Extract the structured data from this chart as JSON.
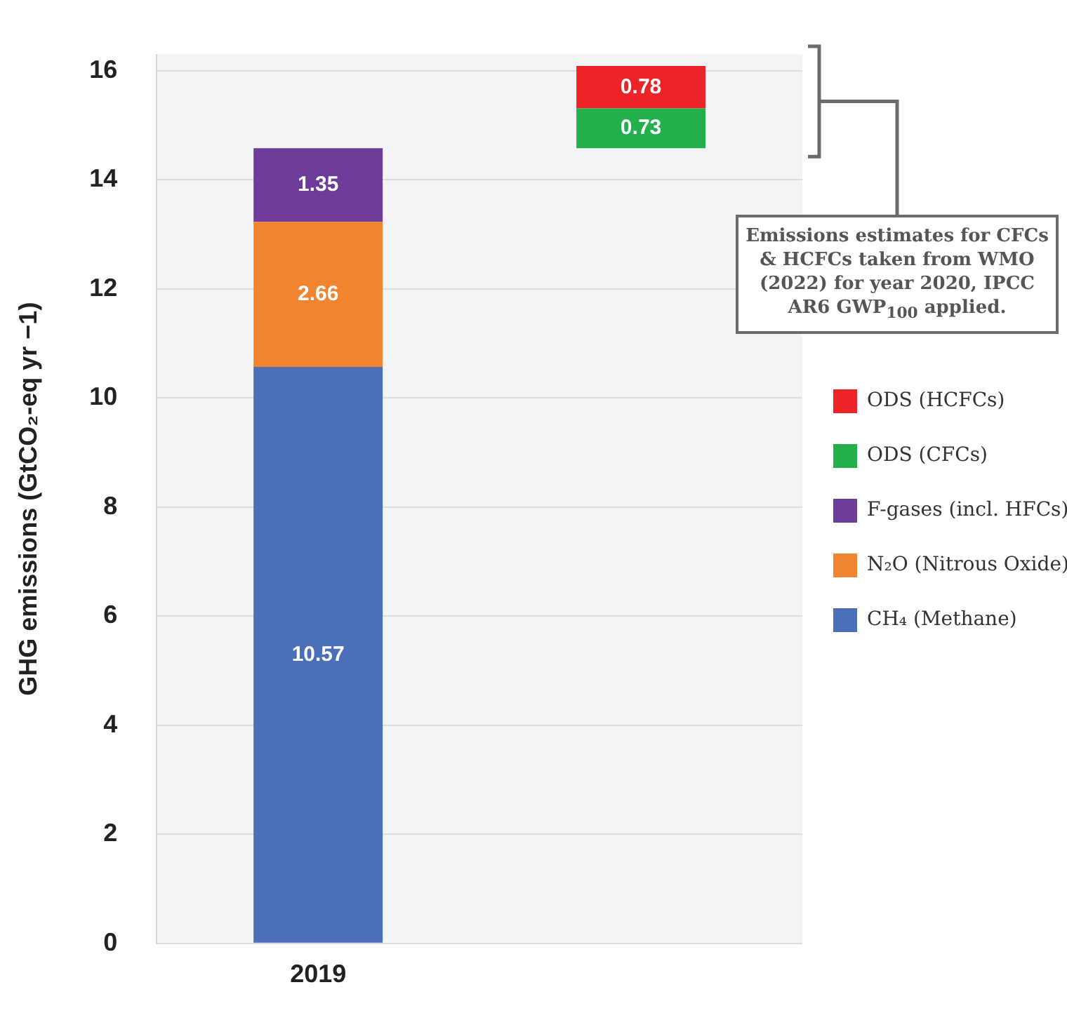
{
  "chart_data": {
    "type": "bar",
    "stacked": true,
    "categories": [
      "2019",
      null
    ],
    "ylabel": "GHG emissions (GtCO₂-eq yr −1)",
    "ylim": [
      0,
      16.3
    ],
    "yticks": [
      0,
      2,
      4,
      6,
      8,
      10,
      12,
      14,
      16
    ],
    "grid": "y",
    "legend": "right",
    "data_labels": true,
    "series": [
      {
        "name": "CH₄ (Methane)",
        "color": "#4a6eb7",
        "values": [
          10.57,
          null
        ]
      },
      {
        "name": "N₂O (Nitrous Oxide)",
        "color": "#f0842f",
        "values": [
          2.66,
          null
        ]
      },
      {
        "name": "F-gases (incl. HFCs)",
        "color": "#6c3c98",
        "values": [
          1.35,
          null
        ]
      },
      {
        "name": "ODS (CFCs)",
        "color": "#23b04c",
        "values": [
          null,
          0.73
        ],
        "base": [
          null,
          14.58
        ]
      },
      {
        "name": "ODS (HCFCs)",
        "color": "#ec2427",
        "values": [
          null,
          0.78
        ],
        "base": [
          null,
          15.31
        ]
      }
    ],
    "annotations": [
      "Emissions estimates for CFCs & HCFCs taken from WMO (2022) for year 2020, IPCC AR6 GWP$_{100}$ applied."
    ]
  }
}
